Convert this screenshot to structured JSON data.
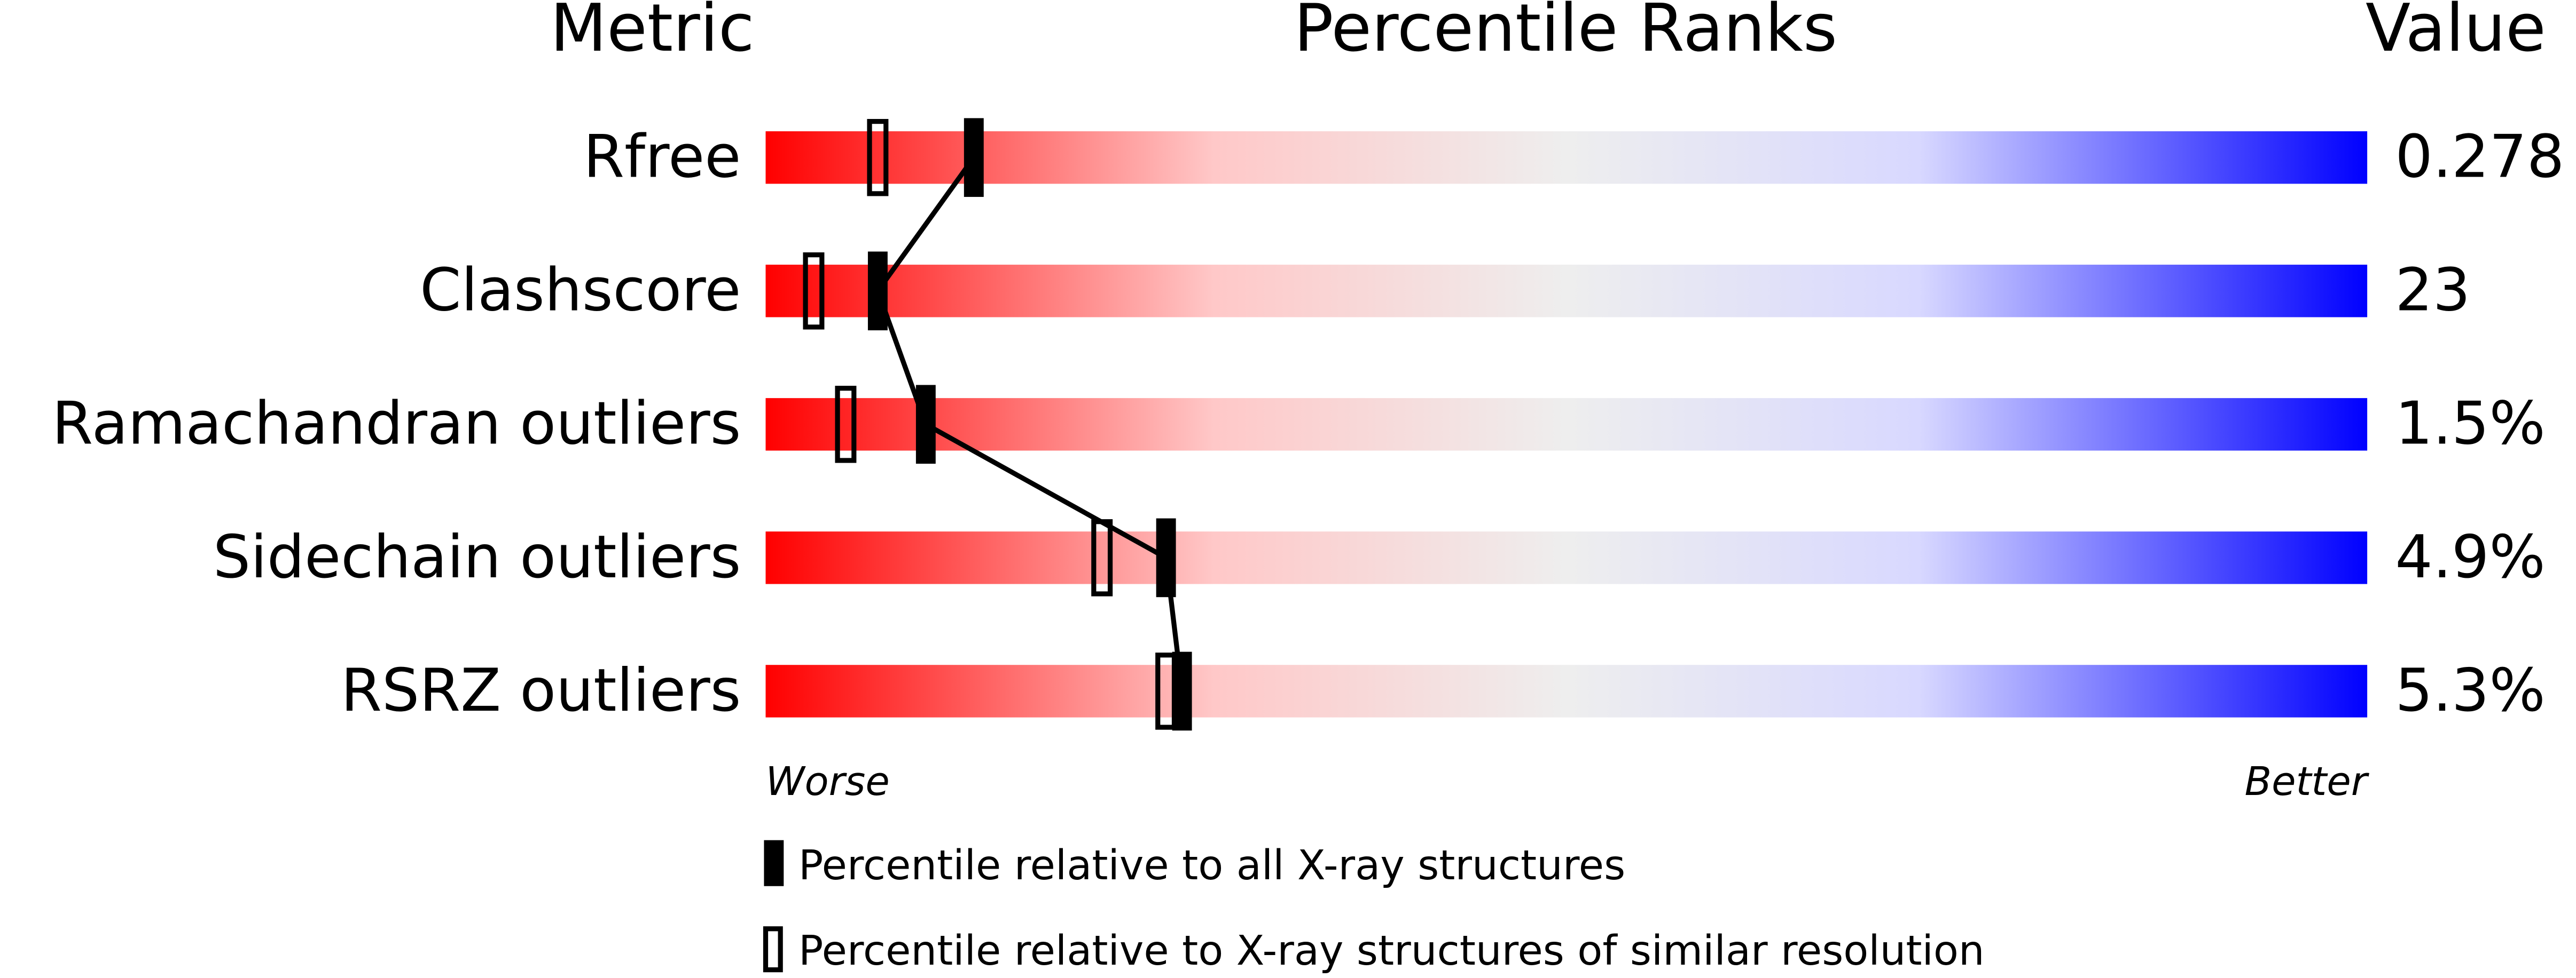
{
  "chart_data": {
    "type": "percentile",
    "headers": [
      "Metric",
      "Percentile Ranks",
      "Value"
    ],
    "categories": [
      "Rfree",
      "Clashscore",
      "Ramachandran outliers",
      "Sidechain outliers",
      "RSRZ outliers"
    ],
    "metric_values": [
      "0.278",
      "23",
      "1.5%",
      "4.9%",
      "5.3%"
    ],
    "xlim": [
      0,
      100
    ],
    "axis_labels": [
      "Worse",
      "Better"
    ],
    "series": [
      {
        "name": "Percentile relative to all X-ray structures",
        "color": "#000000",
        "style": "filled",
        "values": [
          13,
          7,
          10,
          25,
          26
        ]
      },
      {
        "name": "Percentile relative to X-ray structures of similar resolution",
        "color": "#000000",
        "style": "open",
        "values": [
          7,
          3,
          5,
          21,
          25
        ]
      }
    ]
  }
}
